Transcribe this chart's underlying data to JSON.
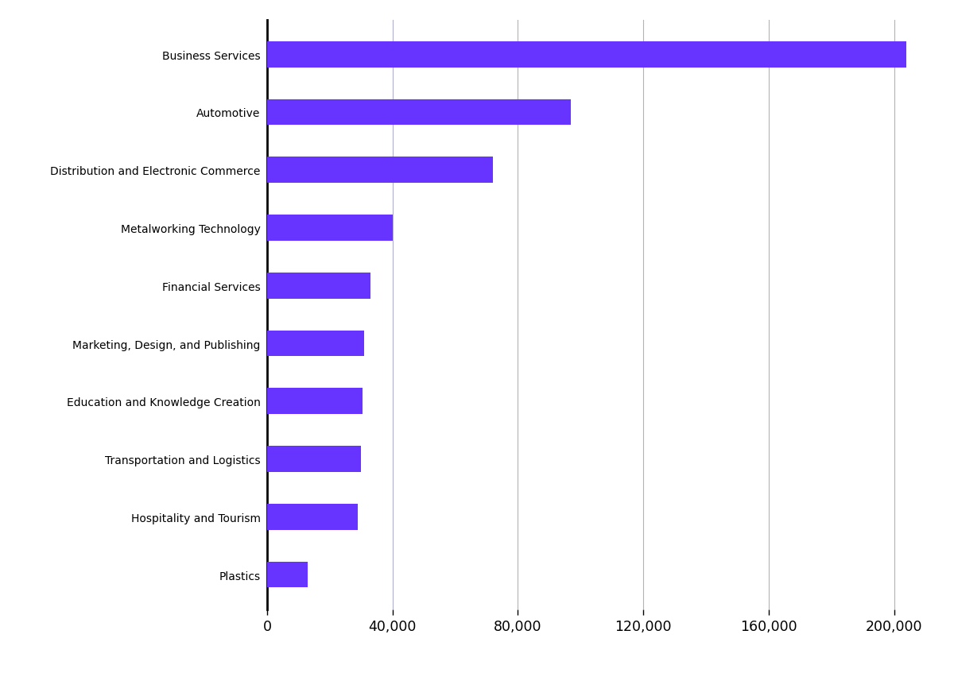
{
  "categories": [
    "Business Services",
    "Automotive",
    "Distribution and Electronic Commerce",
    "Metalworking Technology",
    "Financial Services",
    "Marketing, Design, and Publishing",
    "Education and Knowledge Creation",
    "Transportation and Logistics",
    "Hospitality and Tourism",
    "Plastics"
  ],
  "values": [
    204000,
    97000,
    72000,
    40000,
    33000,
    31000,
    30500,
    30000,
    29000,
    13000
  ],
  "bar_color": "#6633ff",
  "background_color": "#ffffff",
  "xlim": [
    0,
    210000
  ],
  "xticks": [
    0,
    40000,
    80000,
    120000,
    160000,
    200000
  ],
  "xtick_labels": [
    "0",
    "40,000",
    "80,000",
    "120,000",
    "160,000",
    "200,000"
  ],
  "grid_color": "#b0b0c8",
  "axis_line_color": "#000000",
  "bar_height": 0.45,
  "label_fontsize": 12.5,
  "tick_fontsize": 12.5
}
